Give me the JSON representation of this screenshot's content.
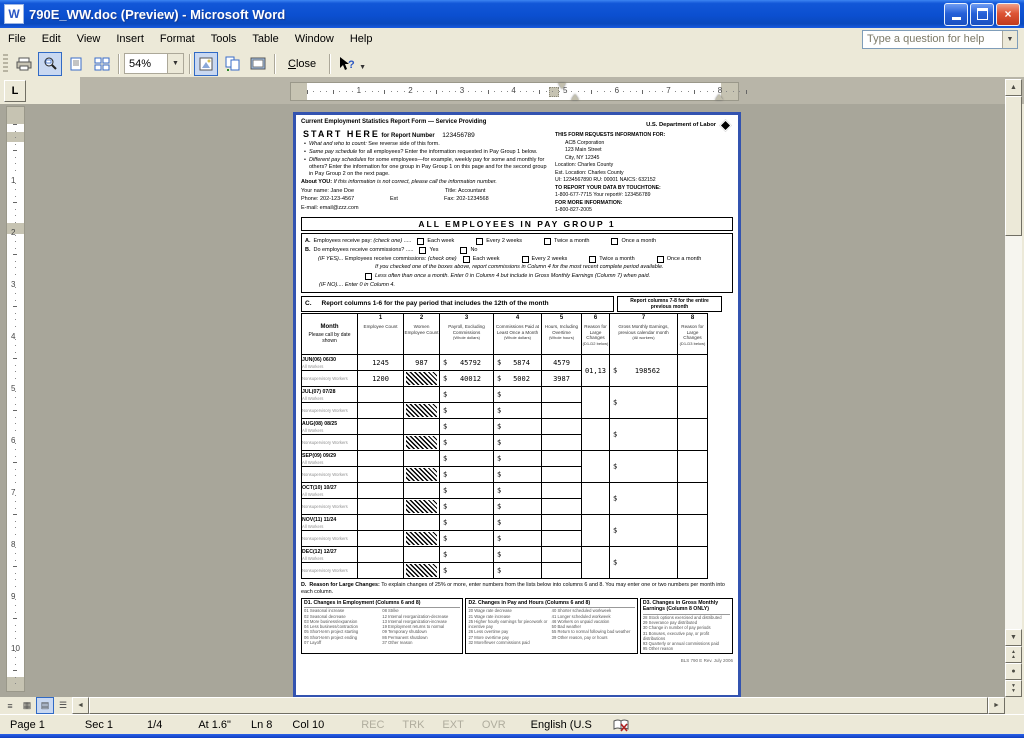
{
  "window": {
    "title": "790E_WW.doc (Preview) - Microsoft Word",
    "app_glyph": "W",
    "close_glyph": "×"
  },
  "menu": {
    "items": [
      "File",
      "Edit",
      "View",
      "Insert",
      "Format",
      "Tools",
      "Table",
      "Window",
      "Help"
    ],
    "help_placeholder": "Type a question for help"
  },
  "toolbar": {
    "zoom_value": "54%",
    "close_label": "Close"
  },
  "ruler": {
    "tab_selector": "L",
    "h_inches": 8,
    "v_inches": 10
  },
  "form": {
    "header": {
      "title": "Current Employment Statistics Report Form — Service Providing",
      "start_here": "START HERE",
      "report_label": "for Report Number",
      "report_number": "123456789",
      "bullets": [
        {
          "lead": "What and who to count:",
          "rest": " See reverse side of this form."
        },
        {
          "lead": "Same pay schedule",
          "rest": " for all employees?  Enter the information requested in Pay Group 1 below."
        },
        {
          "lead": "Different pay schedules",
          "rest": " for some employees—for example, weekly pay for some and monthly for others?  Enter the information for one group in Pay Group 1 on this page and for the second group in Pay Group 2 on the next page."
        }
      ],
      "about_lead": "About YOU: ",
      "about_rest": "If this information is not correct, please call the information number.",
      "name": "Your name:  Jane Doe",
      "title_field": "Title:  Accountant",
      "phone": "Phone:  202-123-4567",
      "ext": "Ext",
      "fax": "Fax:  202-1234568",
      "email": "E-mail:  email@zzz.com"
    },
    "agency": {
      "name": "U.S. Department of Labor",
      "requests": "THIS FORM REQUESTS INFORMATION FOR:",
      "company": "ACB Corporation",
      "street": "123 Main Street",
      "city": "City, NY   12345",
      "location": "Location:  Charles County",
      "est_location": "Est. Location:  Charles County",
      "ids": "UI: 1234567890   RU: 00001   NAICS: 632152",
      "touchtone_label": "TO REPORT YOUR DATA BY TOUCHTONE:",
      "touchtone_info": "1-800-677-7715      Your report#: 123456789",
      "more_info_label": "FOR MORE INFORMATION:",
      "more_info_phone": "1-800-827-2005"
    },
    "banner": "ALL EMPLOYEES IN PAY GROUP 1",
    "section_a": {
      "label": "A.",
      "text": "Employees receive pay:",
      "check_one": "(check one)",
      "leader": ".....",
      "options": [
        "Each week",
        "Every 2 weeks",
        "Twice a month",
        "Once a month"
      ]
    },
    "section_b": {
      "label": "B.",
      "text": "Do employees receive commissions?",
      "leader": ".....",
      "options": [
        "Yes",
        "No"
      ],
      "if_yes_lead": "(IF YES)...",
      "if_yes_text": "Employees receive commissions:",
      "if_yes_check_one": "(check one)",
      "if_yes_options": [
        "Each week",
        "Every 2 weeks",
        "Twice a month",
        "Once a month"
      ],
      "note": "If you checked one of the boxes above, report commissions in Column 4 for the most recent complete period available.",
      "less_often": "Less often than once a month. Enter 0 in Column 4 but include in Gross Monthly Earnings (Column 7) when paid.",
      "if_no": "(IF NO).... Enter 0 in Column 4."
    },
    "section_c": {
      "label": "C.",
      "text": "Report columns 1-6 for the pay period that includes the 12th of the month",
      "right": "Report columns 7-8 for the entire previous month"
    },
    "table": {
      "month_header": {
        "line1": "Month",
        "line2": "Please call by date shown"
      },
      "sub_all": "All Workers",
      "sub_non": "Nonsupervisory Workers",
      "columns": [
        {
          "num": "1",
          "title": "Employee Count",
          "note": ""
        },
        {
          "num": "2",
          "title": "Women Employee Count",
          "note": ""
        },
        {
          "num": "3",
          "title": "Payroll, Excluding Commissions",
          "note": "(Whole dollars)"
        },
        {
          "num": "4",
          "title": "Commissions Paid at Least Once a Month",
          "note": "(Whole dollars)"
        },
        {
          "num": "5",
          "title": "Hours, Including Overtime",
          "note": "(Whole hours)"
        },
        {
          "num": "6",
          "title": "Reason for Large Changes",
          "note": "(D1-D2 below)"
        },
        {
          "num": "7",
          "title": "Gross Monthly Earnings, previous calendar month",
          "note": "(All workers)"
        },
        {
          "num": "8",
          "title": "Reason for Large Changes",
          "note": "(D1-D3 below)"
        }
      ],
      "months": [
        {
          "label": "JUN(06) 06/30",
          "all": [
            "1245",
            "987",
            "$|45792",
            "$|5874",
            "4579"
          ],
          "non": [
            "1200",
            "#HATCH",
            "$|40012",
            "$|5002",
            "3987"
          ],
          "c6": "01,13",
          "c7": "$|198562",
          "c8": ""
        },
        {
          "label": "JUL(07) 07/28",
          "all": [
            "",
            "",
            "$|",
            "$|",
            ""
          ],
          "non": [
            "",
            "#HATCH",
            "$|",
            "$|",
            ""
          ],
          "c6": "",
          "c7": "$|",
          "c8": ""
        },
        {
          "label": "AUG(08) 08/25",
          "all": [
            "",
            "",
            "$|",
            "$|",
            ""
          ],
          "non": [
            "",
            "#HATCH",
            "$|",
            "$|",
            ""
          ],
          "c6": "",
          "c7": "$|",
          "c8": ""
        },
        {
          "label": "SEP(09) 09/29",
          "all": [
            "",
            "",
            "$|",
            "$|",
            ""
          ],
          "non": [
            "",
            "#HATCH",
            "$|",
            "$|",
            ""
          ],
          "c6": "",
          "c7": "$|",
          "c8": ""
        },
        {
          "label": "OCT(10) 10/27",
          "all": [
            "",
            "",
            "$|",
            "$|",
            ""
          ],
          "non": [
            "",
            "#HATCH",
            "$|",
            "$|",
            ""
          ],
          "c6": "",
          "c7": "$|",
          "c8": ""
        },
        {
          "label": "NOV(11) 11/24",
          "all": [
            "",
            "",
            "$|",
            "$|",
            ""
          ],
          "non": [
            "",
            "#HATCH",
            "$|",
            "$|",
            ""
          ],
          "c6": "",
          "c7": "$|",
          "c8": ""
        },
        {
          "label": "DEC(12) 12/27",
          "all": [
            "",
            "",
            "$|",
            "$|",
            ""
          ],
          "non": [
            "",
            "#HATCH",
            "$|",
            "$|",
            ""
          ],
          "c6": "",
          "c7": "$|",
          "c8": ""
        }
      ]
    },
    "section_d": {
      "label": "D.",
      "lead": "Reason for Large Changes:",
      "rest": "  To explain changes of 25% or more, enter numbers from the lists below into columns 6 and 8.  You may enter one or two numbers per month into each column.",
      "d1": {
        "title": "D1.  Changes in Employment (Columns 6 and 8)",
        "col1": [
          "01 Seasonal increase",
          "02 Seasonal decrease",
          "03 More business/expansion",
          "04 Less business/contraction",
          "05 Short-term project starting",
          "06 Short-term project ending",
          "07 Layoff"
        ],
        "col2": [
          "08 Strike",
          "12 Internal reorganization-decrease",
          "13 Internal reorganization-increase",
          "19 Employment returns to normal",
          "09 Temporary shutdown",
          "86 Permanent shutdown",
          "37 Other reason"
        ]
      },
      "d2": {
        "title": "D2.  Changes in Pay and Hours (Columns 6 and 8)",
        "col1": [
          "20 Wage rate decrease",
          "21 Wage rate increase",
          "25 Higher hourly earnings for piecework or incentive pay",
          "26 Less overtime pay",
          "27 More overtime pay",
          "32 More/fewer commissions paid"
        ],
        "col2": [
          "40 Shorter scheduled workweek",
          "41 Longer scheduled workweek",
          "46 Workers on unpaid vacation",
          "50 Bad weather",
          "55 Return to normal following bad weather",
          "39 Other reason, pay or hours"
        ]
      },
      "d3": {
        "title": "D3.  Changes in Gross Monthly Earnings (Column 8 ONLY)",
        "items": [
          "28 Stock options exercised and distributed",
          "29 Severance pay distributed",
          "30 Change in number of pay periods",
          "31 Bonuses, executive pay, or profit distributions",
          "93 Quarterly or annual commissions paid",
          "95 Other reason"
        ]
      }
    },
    "footer": "BLS 790 E Rev. July 2006"
  },
  "status_bar": {
    "page": "Page 1",
    "sec": "Sec 1",
    "position": "1/4",
    "at": "At 1.6\"",
    "line": "Ln 8",
    "col": "Col 10",
    "modes": [
      "REC",
      "TRK",
      "EXT",
      "OVR"
    ],
    "language": "English (U.S"
  },
  "colors": {
    "titlebar_blue": "#0b4fd0",
    "page_border_blue": "#3353b0",
    "toolbar_bg": "#ece9d8",
    "doc_bg": "#a8a69a",
    "close_red": "#dd5435"
  }
}
